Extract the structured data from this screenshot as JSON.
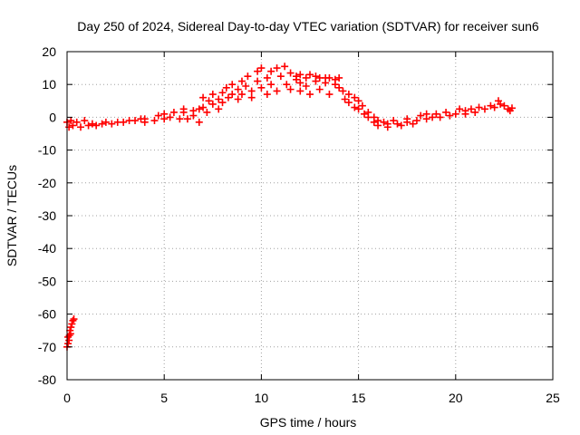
{
  "chart_data": {
    "type": "scatter",
    "title": "Day 250 of 2024, Sidereal Day-to-day VTEC variation (SDTVAR) for receiver sun6",
    "xlabel": "GPS time / hours",
    "ylabel": "SDTVAR / TECUs",
    "xlim": [
      0,
      25
    ],
    "ylim": [
      -80,
      20
    ],
    "x_ticks": [
      0,
      5,
      10,
      15,
      20,
      25
    ],
    "y_ticks": [
      -80,
      -70,
      -60,
      -50,
      -40,
      -30,
      -20,
      -10,
      0,
      10,
      20
    ],
    "grid": true,
    "marker": "plus",
    "marker_color": "#ff0000",
    "series": [
      {
        "name": "main-band",
        "points": [
          [
            0.0,
            -1.5
          ],
          [
            0.1,
            -3.0
          ],
          [
            0.2,
            -1.0
          ],
          [
            0.3,
            -2.5
          ],
          [
            0.5,
            -1.5
          ],
          [
            0.7,
            -3.0
          ],
          [
            0.9,
            -1.0
          ],
          [
            1.1,
            -2.5
          ],
          [
            1.3,
            -2.0
          ],
          [
            1.5,
            -2.5
          ],
          [
            1.8,
            -2.0
          ],
          [
            2.0,
            -1.5
          ],
          [
            2.3,
            -2.0
          ],
          [
            2.6,
            -1.5
          ],
          [
            2.9,
            -1.5
          ],
          [
            3.2,
            -1.0
          ],
          [
            3.5,
            -1.0
          ],
          [
            3.8,
            -0.5
          ],
          [
            4.0,
            -1.5
          ],
          [
            4.0,
            -0.5
          ],
          [
            4.5,
            -1.0
          ],
          [
            4.7,
            0.5
          ],
          [
            5.0,
            -0.5
          ],
          [
            5.0,
            1.0
          ],
          [
            5.3,
            0.0
          ],
          [
            5.5,
            1.5
          ],
          [
            5.8,
            -0.5
          ],
          [
            6.0,
            1.5
          ],
          [
            6.0,
            2.5
          ],
          [
            6.2,
            -0.5
          ],
          [
            6.5,
            2.0
          ],
          [
            6.5,
            0.5
          ],
          [
            6.8,
            2.5
          ],
          [
            6.8,
            -1.5
          ],
          [
            7.0,
            3.0
          ],
          [
            7.0,
            6.0
          ],
          [
            7.2,
            1.5
          ],
          [
            7.3,
            5.0
          ],
          [
            7.5,
            4.0
          ],
          [
            7.5,
            7.0
          ],
          [
            7.8,
            5.5
          ],
          [
            7.8,
            2.5
          ],
          [
            8.0,
            7.5
          ],
          [
            8.0,
            4.5
          ],
          [
            8.2,
            9.0
          ],
          [
            8.3,
            6.0
          ],
          [
            8.5,
            7.0
          ],
          [
            8.5,
            10.0
          ],
          [
            8.8,
            8.5
          ],
          [
            8.8,
            5.5
          ],
          [
            9.0,
            11.0
          ],
          [
            9.0,
            7.0
          ],
          [
            9.2,
            9.5
          ],
          [
            9.3,
            12.5
          ],
          [
            9.5,
            8.0
          ],
          [
            9.5,
            6.0
          ],
          [
            9.8,
            11.0
          ],
          [
            9.8,
            14.0
          ],
          [
            10.0,
            9.0
          ],
          [
            10.0,
            15.0
          ],
          [
            10.3,
            12.0
          ],
          [
            10.3,
            7.0
          ],
          [
            10.5,
            14.0
          ],
          [
            10.5,
            10.0
          ],
          [
            10.8,
            15.0
          ],
          [
            10.8,
            8.0
          ],
          [
            11.0,
            12.5
          ],
          [
            11.2,
            15.5
          ],
          [
            11.3,
            10.0
          ],
          [
            11.5,
            13.5
          ],
          [
            11.5,
            8.5
          ],
          [
            11.8,
            11.5
          ],
          [
            11.8,
            12.5
          ],
          [
            12.0,
            13.0
          ],
          [
            12.0,
            10.5
          ],
          [
            12.0,
            8.0
          ],
          [
            12.3,
            12.0
          ],
          [
            12.3,
            9.5
          ],
          [
            12.5,
            13.0
          ],
          [
            12.5,
            7.0
          ],
          [
            12.8,
            11.0
          ],
          [
            12.8,
            12.5
          ],
          [
            13.0,
            12.0
          ],
          [
            13.0,
            8.5
          ],
          [
            13.3,
            10.5
          ],
          [
            13.3,
            12.0
          ],
          [
            13.5,
            12.0
          ],
          [
            13.5,
            7.0
          ],
          [
            13.8,
            10.0
          ],
          [
            13.8,
            11.5
          ],
          [
            14.0,
            12.0
          ],
          [
            14.0,
            9.0
          ],
          [
            14.2,
            8.0
          ],
          [
            14.3,
            5.5
          ],
          [
            14.5,
            7.0
          ],
          [
            14.5,
            4.5
          ],
          [
            14.8,
            6.0
          ],
          [
            14.8,
            3.0
          ],
          [
            15.0,
            5.0
          ],
          [
            15.0,
            2.5
          ],
          [
            15.2,
            3.5
          ],
          [
            15.3,
            1.0
          ],
          [
            15.5,
            1.5
          ],
          [
            15.5,
            0.0
          ],
          [
            15.8,
            0.0
          ],
          [
            15.8,
            -1.5
          ],
          [
            16.0,
            -1.0
          ],
          [
            16.0,
            -2.5
          ],
          [
            16.3,
            -1.5
          ],
          [
            16.5,
            -2.0
          ],
          [
            16.5,
            -3.0
          ],
          [
            16.8,
            -1.0
          ],
          [
            17.0,
            -2.0
          ],
          [
            17.2,
            -2.5
          ],
          [
            17.5,
            -1.5
          ],
          [
            17.5,
            -0.5
          ],
          [
            17.8,
            -2.0
          ],
          [
            18.0,
            -1.0
          ],
          [
            18.2,
            0.5
          ],
          [
            18.5,
            -0.5
          ],
          [
            18.5,
            1.0
          ],
          [
            18.8,
            0.0
          ],
          [
            19.0,
            1.0
          ],
          [
            19.2,
            0.0
          ],
          [
            19.5,
            1.5
          ],
          [
            19.7,
            0.5
          ],
          [
            20.0,
            1.0
          ],
          [
            20.2,
            2.5
          ],
          [
            20.5,
            1.0
          ],
          [
            20.5,
            2.0
          ],
          [
            20.8,
            2.5
          ],
          [
            21.0,
            1.5
          ],
          [
            21.2,
            3.0
          ],
          [
            21.5,
            2.5
          ],
          [
            21.8,
            3.5
          ],
          [
            22.0,
            3.0
          ],
          [
            22.2,
            5.0
          ],
          [
            22.3,
            4.0
          ],
          [
            22.5,
            3.5
          ],
          [
            22.7,
            2.5
          ],
          [
            22.8,
            2.0
          ],
          [
            22.9,
            2.8
          ]
        ]
      },
      {
        "name": "outlier-cluster",
        "points": [
          [
            0.0,
            -70.0
          ],
          [
            0.05,
            -69.0
          ],
          [
            0.1,
            -68.0
          ],
          [
            0.12,
            -66.5
          ],
          [
            0.15,
            -65.0
          ],
          [
            0.2,
            -64.0
          ],
          [
            0.25,
            -63.0
          ],
          [
            0.3,
            -62.0
          ],
          [
            0.35,
            -61.5
          ],
          [
            0.05,
            -67.0
          ],
          [
            0.18,
            -66.0
          ]
        ]
      }
    ]
  }
}
